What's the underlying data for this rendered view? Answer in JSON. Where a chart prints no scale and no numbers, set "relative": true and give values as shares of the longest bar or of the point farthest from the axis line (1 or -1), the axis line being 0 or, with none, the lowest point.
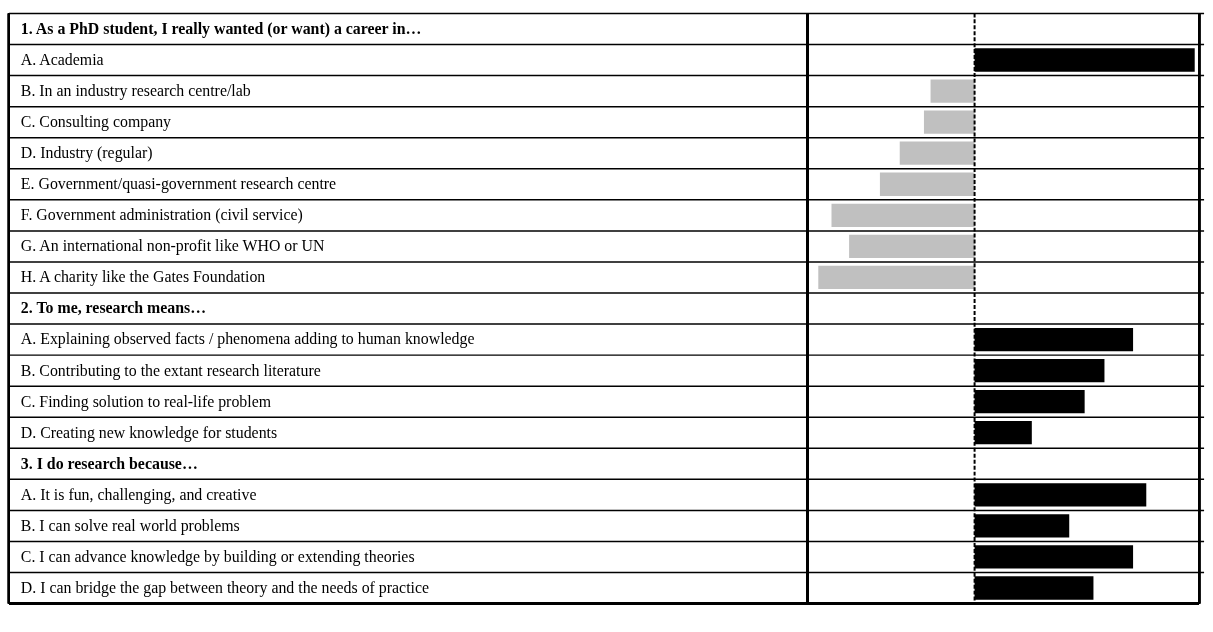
{
  "chart_data": {
    "type": "bar",
    "ref_lines": [
      {
        "axis": "x",
        "value": 0,
        "color": "#000000",
        "line_style": "dashed"
      }
    ],
    "orientation": "horizontal",
    "relative": true,
    "categories": [
      "1. As a PhD student, I really wanted (or want) a career in…",
      "A. Academia",
      "B. In an industry research centre/lab",
      "C. Consulting company",
      "D. Industry (regular)",
      "E. Government/quasi-government research centre",
      "F. Government administration (civil service)",
      "G. An international non-profit like WHO or UN",
      "H. A charity like the Gates Foundation",
      "2. To me, research means…",
      "A.  Explaining observed facts / phenomena adding to human knowledge",
      "B.  Contributing to the extant research literature",
      "C. Finding solution to real-life problem",
      "D. Creating new knowledge for students",
      "3. I do research because…",
      "A. It is fun, challenging, and creative",
      "B. I can solve real world problems",
      "C. I can advance knowledge by building or extending theories",
      "D. I can bridge the gap between theory and the needs of practice"
    ],
    "values": [
      null,
      1,
      -0.2,
      -0.23,
      -0.34,
      -0.43,
      -0.65,
      -0.57,
      -0.71,
      null,
      0.72,
      0.59,
      0.5,
      0.26,
      null,
      0.78,
      0.43,
      0.72,
      0.54
    ],
    "colors": [
      null,
      "#000000",
      "#c0c0c0",
      "#c0c0c0",
      "#c0c0c0",
      "#c0c0c0",
      "#c0c0c0",
      "#c0c0c0",
      "#c0c0c0",
      null,
      "#000000",
      "#000000",
      "#000000",
      "#000000",
      null,
      "#000000",
      "#000000",
      "#000000",
      "#000000"
    ]
  }
}
